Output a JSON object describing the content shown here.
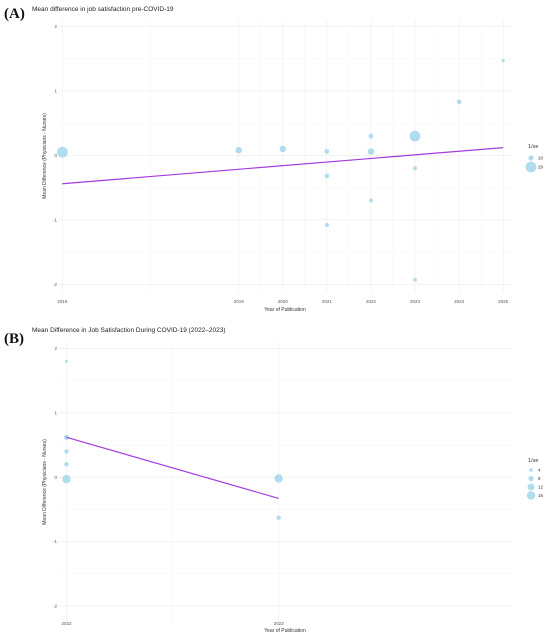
{
  "chart_data": [
    {
      "panel": "(A)",
      "type": "scatter",
      "title": "Mean difference in job satisfaction pre-COVID-19",
      "xlabel": "Year of Publication",
      "ylabel": "Mean Difference (Physicians - Nurses)",
      "x_ticks": [
        2015,
        2019,
        2020,
        2021,
        2022,
        2023,
        2024,
        2025
      ],
      "y_ticks": [
        -2,
        -1,
        0,
        1,
        2
      ],
      "xlim": [
        2014.9,
        2025.2
      ],
      "ylim": [
        -2.12,
        2.1
      ],
      "points": [
        {
          "x": 2015,
          "y": 0.05,
          "w": 29
        },
        {
          "x": 2019,
          "y": 0.08,
          "w": 14
        },
        {
          "x": 2020,
          "y": 0.1,
          "w": 14
        },
        {
          "x": 2021,
          "y": 0.06,
          "w": 8
        },
        {
          "x": 2021,
          "y": -0.32,
          "w": 8
        },
        {
          "x": 2021,
          "y": -1.08,
          "w": 6
        },
        {
          "x": 2022,
          "y": 0.3,
          "w": 8
        },
        {
          "x": 2022,
          "y": 0.06,
          "w": 14
        },
        {
          "x": 2022,
          "y": -0.7,
          "w": 5
        },
        {
          "x": 2023,
          "y": 0.3,
          "w": 29
        },
        {
          "x": 2023,
          "y": -0.2,
          "w": 6
        },
        {
          "x": 2023,
          "y": -1.93,
          "w": 5
        },
        {
          "x": 2024,
          "y": 0.83,
          "w": 8
        },
        {
          "x": 2025,
          "y": 1.47,
          "w": 3
        }
      ],
      "fit_line": {
        "x": [
          2015,
          2025
        ],
        "y": [
          -0.44,
          0.12
        ]
      },
      "legend": {
        "title": "1/se",
        "entries": [
          10,
          29
        ],
        "position": "right"
      }
    },
    {
      "panel": "(B)",
      "type": "scatter",
      "title": "Mean Difference in Job Satisfaction During COVID-19 (2022–2023)",
      "xlabel": "Year of Publication",
      "ylabel": "Mean Difference (Physicians - Nurses)",
      "x_ticks": [
        2022,
        2023
      ],
      "y_ticks": [
        -2,
        -1,
        0,
        1,
        2
      ],
      "xlim": [
        2021.96,
        2024.1
      ],
      "ylim": [
        -2.25,
        2.1
      ],
      "points": [
        {
          "x": 2022,
          "y": 1.8,
          "w": 2
        },
        {
          "x": 2022,
          "y": 0.62,
          "w": 8
        },
        {
          "x": 2022,
          "y": 0.4,
          "w": 6
        },
        {
          "x": 2022,
          "y": 0.2,
          "w": 6
        },
        {
          "x": 2022,
          "y": -0.03,
          "w": 16
        },
        {
          "x": 2023,
          "y": -0.02,
          "w": 16
        },
        {
          "x": 2023,
          "y": -0.63,
          "w": 6
        }
      ],
      "fit_line": {
        "x": [
          2022,
          2023
        ],
        "y": [
          0.62,
          -0.33
        ]
      },
      "legend": {
        "title": "1/se",
        "entries": [
          4,
          8,
          12,
          16
        ],
        "position": "right"
      }
    }
  ]
}
